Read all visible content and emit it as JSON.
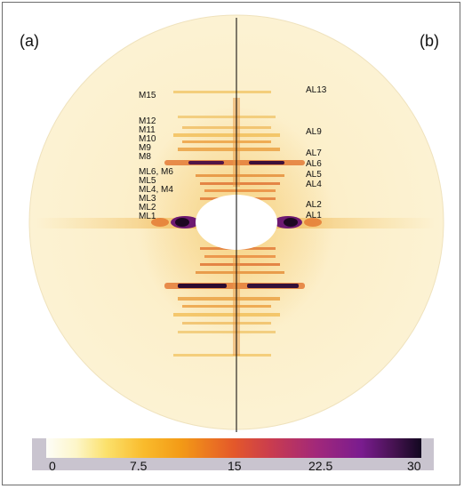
{
  "panels": {
    "left": "(a)",
    "right": "(b)"
  },
  "labels_left": [
    "M15",
    "ML2",
    "ML1",
    "M12",
    "M11",
    "M10",
    "M9",
    "M8",
    "ML6, M6",
    "ML5",
    "ML4, M4",
    "ML3"
  ],
  "labels_right": [
    "AL13",
    "AL9",
    "AL7",
    "AL6",
    "AL5",
    "AL4",
    "AL2",
    "AL1"
  ],
  "colorbar": {
    "ticks": [
      "0",
      "7.5",
      "15",
      "22.5",
      "30"
    ],
    "min": 0,
    "max": 30
  },
  "colors": {
    "background": "#fcf1cf",
    "ring_edge": "#f4e3b2",
    "dark": "#2a0a3a",
    "purple": "#7a1c8f",
    "orange": "#e86a1f"
  }
}
